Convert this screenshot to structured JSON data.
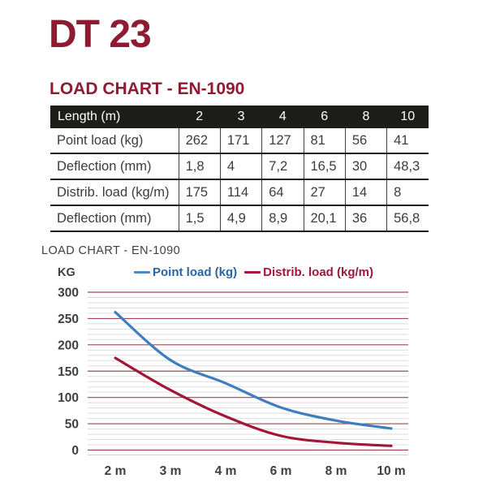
{
  "page": {
    "title": "DT 23",
    "section_heading": "LOAD CHART - EN-1090"
  },
  "table": {
    "header": {
      "label": "Length (m)",
      "columns": [
        "2",
        "3",
        "4",
        "6",
        "8",
        "10"
      ]
    },
    "rows": [
      {
        "label": "Point load (kg)",
        "values": [
          "262",
          "171",
          "127",
          "81",
          "56",
          "41"
        ]
      },
      {
        "label": "Deflection (mm)",
        "values": [
          "1,8",
          "4",
          "7,2",
          "16,5",
          "30",
          "48,3"
        ]
      },
      {
        "label": "Distrib. load (kg/m)",
        "values": [
          "175",
          "114",
          "64",
          "27",
          "14",
          "8"
        ]
      },
      {
        "label": "Deflection (mm)",
        "values": [
          "1,5",
          "4,9",
          "8,9",
          "20,1",
          "36",
          "56,8"
        ]
      }
    ]
  },
  "chart": {
    "title": "LOAD CHART - EN-1090",
    "y_axis_unit": "KG",
    "legend": [
      {
        "label": "Point load (kg)",
        "text_color": "#2a64a5",
        "swatch_color": "#4e88c5"
      },
      {
        "label": "Distrib. load (kg/m)",
        "text_color": "#a21638",
        "swatch_color": "#a21638"
      }
    ]
  },
  "chart_data": {
    "type": "line",
    "title": "LOAD CHART - EN-1090",
    "ylabel": "KG",
    "categories": [
      "2 m",
      "3 m",
      "4 m",
      "6 m",
      "8 m",
      "10 m"
    ],
    "series": [
      {
        "name": "Point load (kg)",
        "values": [
          262,
          171,
          127,
          81,
          56,
          41
        ],
        "color": "#3e7ec0"
      },
      {
        "name": "Distrib. load (kg/m)",
        "values": [
          175,
          114,
          64,
          27,
          14,
          8
        ],
        "color": "#a21638"
      }
    ],
    "ylim": [
      0,
      300
    ],
    "y_major_step": 50,
    "y_minor_step": 10,
    "grid": true,
    "legend_position": "top",
    "colors": {
      "major_grid": "#a04655",
      "minor_grid": "#dddddd",
      "axis_line": "#d0d0d0",
      "tick_text": "#3f3f3f"
    }
  }
}
